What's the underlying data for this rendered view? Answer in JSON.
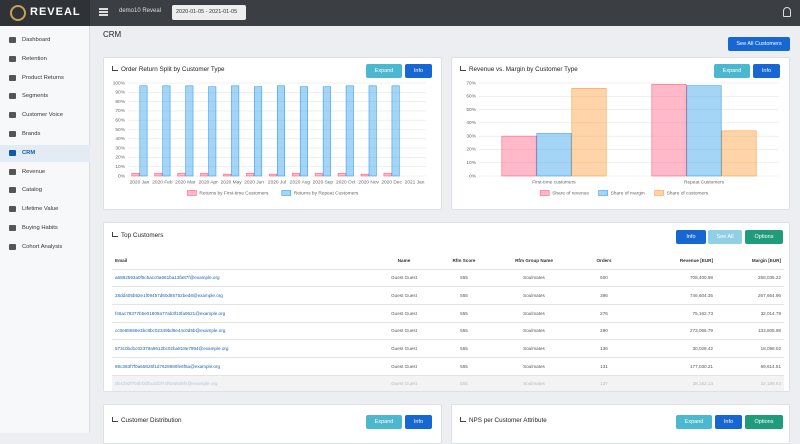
{
  "header": {
    "logo": "REVEAL",
    "account": "demo10 Reveal",
    "date_range": "2020-01-05 - 2021-01-05"
  },
  "sidebar": {
    "items": [
      "Dashboard",
      "Retention",
      "Product Returns",
      "Segments",
      "Customer Voice",
      "Brands",
      "CRM",
      "Revenue",
      "Catalog",
      "Lifetime Value",
      "Buying Habits",
      "Cohort Analysis"
    ]
  },
  "page": {
    "title": "CRM",
    "see_all_button": "See All Customers"
  },
  "panels": [
    {
      "title": "Order Return Split by Customer Type",
      "buttons": [
        "Expand",
        "Info"
      ]
    },
    {
      "title": "Revenue vs. Margin by Customer Type",
      "buttons": [
        "Expand",
        "Info"
      ]
    },
    {
      "title": "Top Customers",
      "buttons": [
        "Info",
        "See All",
        "Options"
      ]
    },
    {
      "title": "Customer Distribution",
      "buttons": [
        "Expand",
        "Info"
      ]
    },
    {
      "title": "NPS per Customer Attribute",
      "buttons": [
        "Expand",
        "Info",
        "Options"
      ]
    }
  ],
  "chart_data": [
    {
      "type": "bar",
      "categories": [
        "2020 Jan",
        "2020 Feb",
        "2020 Mar",
        "2020 Apr",
        "2020 May",
        "2020 Jun",
        "2020 Jul",
        "2020 Aug",
        "2020 Sep",
        "2020 Oct",
        "2020 Nov",
        "2020 Dec",
        "2021 Jan"
      ],
      "series": [
        {
          "name": "Returns by First-time Customers",
          "color": "#ff6384",
          "values": [
            3,
            3,
            3,
            3,
            2,
            3,
            2,
            3,
            3,
            3,
            2,
            3,
            null
          ]
        },
        {
          "name": "Returns by Repeat Customers",
          "color": "#36a2eb",
          "values": [
            97,
            97,
            97,
            96,
            97,
            96,
            97,
            96,
            96,
            97,
            97,
            97,
            null
          ]
        }
      ],
      "ylim": [
        0,
        100
      ],
      "yticks": [
        {
          "value": 0,
          "label": "0%"
        },
        {
          "value": 10,
          "label": "10%"
        },
        {
          "value": 20,
          "label": "20%"
        },
        {
          "value": 30,
          "label": "30%"
        },
        {
          "value": 40,
          "label": "40%"
        },
        {
          "value": 50,
          "label": "50%"
        },
        {
          "value": 60,
          "label": "60%"
        },
        {
          "value": 70,
          "label": "70%"
        },
        {
          "value": 80,
          "label": "80%"
        },
        {
          "value": 90,
          "label": "90%"
        },
        {
          "value": 100,
          "label": "100%"
        }
      ],
      "grid": true,
      "legend": "bottom"
    },
    {
      "type": "bar",
      "categories": [
        "First-time customers",
        "Repeat Customers"
      ],
      "series": [
        {
          "name": "Share of revenue",
          "color": "#ff6384",
          "values": [
            30,
            69
          ]
        },
        {
          "name": "Share of margin",
          "color": "#36a2eb",
          "values": [
            32,
            68
          ]
        },
        {
          "name": "Share of customers",
          "color": "#ff9f40",
          "values": [
            66,
            34
          ]
        }
      ],
      "ylim": [
        0,
        70
      ],
      "yticks": [
        {
          "value": 0,
          "label": "0%"
        },
        {
          "value": 10,
          "label": "10%"
        },
        {
          "value": 20,
          "label": "20%"
        },
        {
          "value": 30,
          "label": "30%"
        },
        {
          "value": 40,
          "label": "40%"
        },
        {
          "value": 50,
          "label": "50%"
        },
        {
          "value": 60,
          "label": "60%"
        },
        {
          "value": 70,
          "label": "70%"
        }
      ],
      "grid": true,
      "legend": "bottom"
    }
  ],
  "table": {
    "columns": [
      "Email",
      "Name",
      "Rfm Score",
      "Rfm Group Name",
      "Orders",
      "Revenue [EUR]",
      "Margin [EUR]"
    ],
    "rows": [
      [
        "a6882593a0f5c5acc0a661ba13fa87f@example.org",
        "Guest Guest",
        "555",
        "Soulmates",
        "500",
        "708,400.98",
        "258,035.22"
      ],
      [
        "28dd405b52e1f09457d60d85752bed8@example.org",
        "Guest Guest",
        "555",
        "Soulmates",
        "396",
        "746,604.35",
        "267,664.96"
      ],
      [
        "f46ac78377b5e01808a77ab3f10fa9621@example.org",
        "Guest Guest",
        "555",
        "Soulmates",
        "276",
        "75,162.73",
        "32,014.79"
      ],
      [
        "cc0e68558e3bc8bc02349bd6e44c0d5b@example.org",
        "Guest Guest",
        "555",
        "Soulmates",
        "290",
        "273,066.79",
        "133,808.98"
      ],
      [
        "573c0bd1c02379a9612bc02ba818e7994@example.org",
        "Guest Guest",
        "555",
        "Soulmates",
        "136",
        "30,028.42",
        "18,098.02"
      ],
      [
        "89c383f7f0a55826f1d7628980fe6f5a@example.org",
        "Guest Guest",
        "555",
        "Soulmates",
        "131",
        "177,030.21",
        "69,614.51"
      ],
      [
        "0b4292f7b0bf33bcd1bf72f60a9d9f4@example.org",
        "Guest Guest",
        "555",
        "Soulmates",
        "137",
        "38,163.13",
        "22,189.84"
      ]
    ]
  }
}
